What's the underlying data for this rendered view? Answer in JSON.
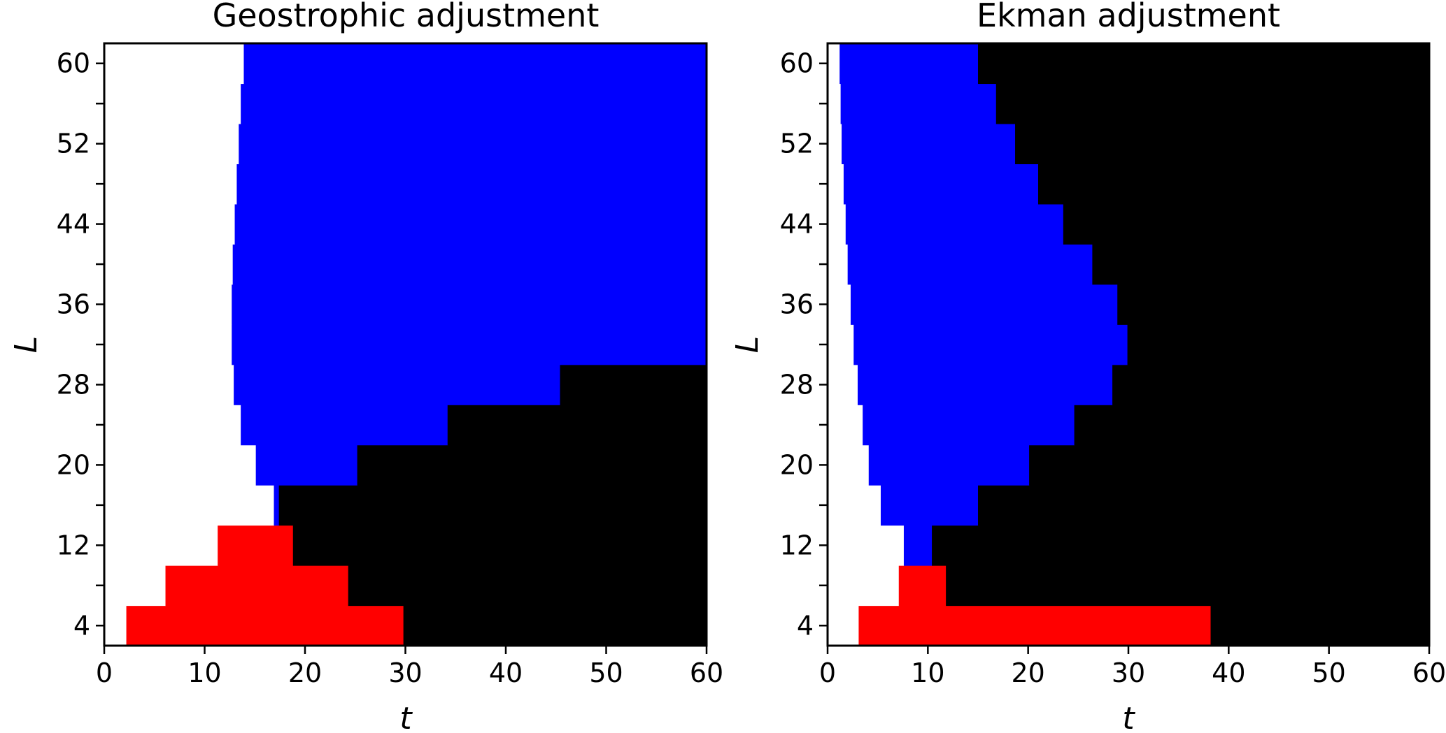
{
  "chart_data": [
    {
      "type": "heatmap",
      "title": "Geostrophic adjustment",
      "xlabel": "t",
      "ylabel": "L",
      "xlim": [
        0,
        60
      ],
      "ylim": [
        2,
        62
      ],
      "x_ticks": [
        0,
        10,
        20,
        30,
        40,
        50,
        60
      ],
      "y_ticks": [
        4,
        12,
        20,
        28,
        36,
        44,
        52,
        60
      ],
      "grid": false,
      "legend": "none",
      "colors": {
        "white": "#ffffff",
        "red": "#ff0000",
        "blue": "#0000ff",
        "black": "#000000"
      },
      "rows": [
        {
          "L": 4,
          "white_until": 2.2,
          "red_until": 29.8,
          "blue_until": 29.8
        },
        {
          "L": 8,
          "white_until": 6.1,
          "red_until": 24.3,
          "blue_until": 24.3
        },
        {
          "L": 12,
          "white_until": 11.3,
          "red_until": 18.8,
          "blue_until": 18.8
        },
        {
          "L": 16,
          "white_until": 16.9,
          "red_until": 16.9,
          "blue_until": 17.4
        },
        {
          "L": 20,
          "white_until": 15.1,
          "red_until": 15.1,
          "blue_until": 25.2
        },
        {
          "L": 24,
          "white_until": 13.6,
          "red_until": 13.6,
          "blue_until": 34.2
        },
        {
          "L": 28,
          "white_until": 12.9,
          "red_until": 12.9,
          "blue_until": 45.4
        },
        {
          "L": 32,
          "white_until": 12.7,
          "red_until": 12.7,
          "blue_until": 60
        },
        {
          "L": 36,
          "white_until": 12.7,
          "red_until": 12.7,
          "blue_until": 60
        },
        {
          "L": 40,
          "white_until": 12.8,
          "red_until": 12.8,
          "blue_until": 60
        },
        {
          "L": 44,
          "white_until": 13.0,
          "red_until": 13.0,
          "blue_until": 60
        },
        {
          "L": 48,
          "white_until": 13.2,
          "red_until": 13.2,
          "blue_until": 60
        },
        {
          "L": 52,
          "white_until": 13.4,
          "red_until": 13.4,
          "blue_until": 60
        },
        {
          "L": 56,
          "white_until": 13.6,
          "red_until": 13.6,
          "blue_until": 60
        },
        {
          "L": 60,
          "white_until": 13.9,
          "red_until": 13.9,
          "blue_until": 60
        }
      ]
    },
    {
      "type": "heatmap",
      "title": "Ekman adjustment",
      "xlabel": "t",
      "ylabel": "L",
      "xlim": [
        0,
        60
      ],
      "ylim": [
        2,
        62
      ],
      "x_ticks": [
        0,
        10,
        20,
        30,
        40,
        50,
        60
      ],
      "y_ticks": [
        4,
        12,
        20,
        28,
        36,
        44,
        52,
        60
      ],
      "grid": false,
      "legend": "none",
      "colors": {
        "white": "#ffffff",
        "red": "#ff0000",
        "blue": "#0000ff",
        "black": "#000000"
      },
      "rows": [
        {
          "L": 4,
          "white_until": 3.1,
          "red_until": 38.2,
          "blue_until": 38.2
        },
        {
          "L": 8,
          "white_until": 7.1,
          "red_until": 11.8,
          "blue_until": 11.8
        },
        {
          "L": 12,
          "white_until": 7.6,
          "red_until": 7.6,
          "blue_until": 10.4
        },
        {
          "L": 16,
          "white_until": 5.3,
          "red_until": 5.3,
          "blue_until": 15.0
        },
        {
          "L": 20,
          "white_until": 4.1,
          "red_until": 4.1,
          "blue_until": 20.1
        },
        {
          "L": 24,
          "white_until": 3.5,
          "red_until": 3.5,
          "blue_until": 24.6
        },
        {
          "L": 28,
          "white_until": 3.0,
          "red_until": 3.0,
          "blue_until": 28.4
        },
        {
          "L": 32,
          "white_until": 2.6,
          "red_until": 2.6,
          "blue_until": 29.9
        },
        {
          "L": 36,
          "white_until": 2.3,
          "red_until": 2.3,
          "blue_until": 28.9
        },
        {
          "L": 40,
          "white_until": 2.0,
          "red_until": 2.0,
          "blue_until": 26.4
        },
        {
          "L": 44,
          "white_until": 1.8,
          "red_until": 1.8,
          "blue_until": 23.5
        },
        {
          "L": 48,
          "white_until": 1.6,
          "red_until": 1.6,
          "blue_until": 21.0
        },
        {
          "L": 52,
          "white_until": 1.4,
          "red_until": 1.4,
          "blue_until": 18.7
        },
        {
          "L": 56,
          "white_until": 1.3,
          "red_until": 1.3,
          "blue_until": 16.8
        },
        {
          "L": 60,
          "white_until": 1.2,
          "red_until": 1.2,
          "blue_until": 15.0
        }
      ]
    }
  ]
}
